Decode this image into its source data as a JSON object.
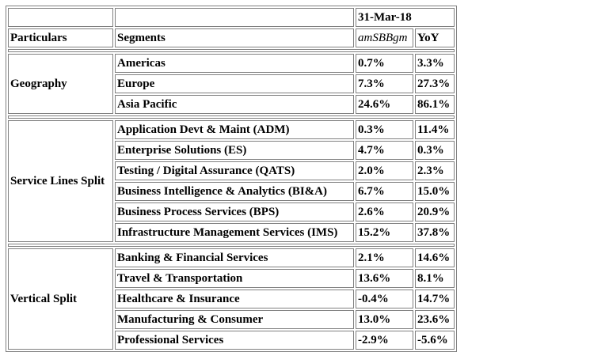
{
  "header": {
    "date": "31-Mar-18",
    "particulars": "Particulars",
    "segments": "Segments",
    "metric": "amSBBgm",
    "yoy": "YoY"
  },
  "groups": [
    {
      "name": "Geography",
      "rows": [
        {
          "segment": "Americas",
          "metric": "0.7%",
          "yoy": "3.3%"
        },
        {
          "segment": "Europe",
          "metric": "7.3%",
          "yoy": "27.3%"
        },
        {
          "segment": "Asia Pacific",
          "metric": "24.6%",
          "yoy": "86.1%"
        }
      ]
    },
    {
      "name": "Service Lines Split",
      "rows": [
        {
          "segment": "Application Devt & Maint (ADM)",
          "metric": "0.3%",
          "yoy": "11.4%"
        },
        {
          "segment": "Enterprise Solutions (ES)",
          "metric": "4.7%",
          "yoy": "0.3%"
        },
        {
          "segment": "Testing / Digital Assurance (QATS)",
          "metric": "2.0%",
          "yoy": "2.3%"
        },
        {
          "segment": "Business Intelligence & Analytics (BI&A)",
          "metric": "6.7%",
          "yoy": "15.0%"
        },
        {
          "segment": "Business Process Services (BPS)",
          "metric": "2.6%",
          "yoy": "20.9%"
        },
        {
          "segment": "Infrastructure Management Services (IMS)",
          "metric": "15.2%",
          "yoy": "37.8%"
        }
      ]
    },
    {
      "name": "Vertical Split",
      "rows": [
        {
          "segment": "Banking & Financial Services",
          "metric": "2.1%",
          "yoy": "14.6%"
        },
        {
          "segment": "Travel & Transportation",
          "metric": "13.6%",
          "yoy": "8.1%"
        },
        {
          "segment": "Healthcare & Insurance",
          "metric": "-0.4%",
          "yoy": "14.7%"
        },
        {
          "segment": "Manufacturing & Consumer",
          "metric": "13.0%",
          "yoy": "23.6%"
        },
        {
          "segment": "Professional Services",
          "metric": "-2.9%",
          "yoy": "-5.6%"
        }
      ]
    }
  ]
}
